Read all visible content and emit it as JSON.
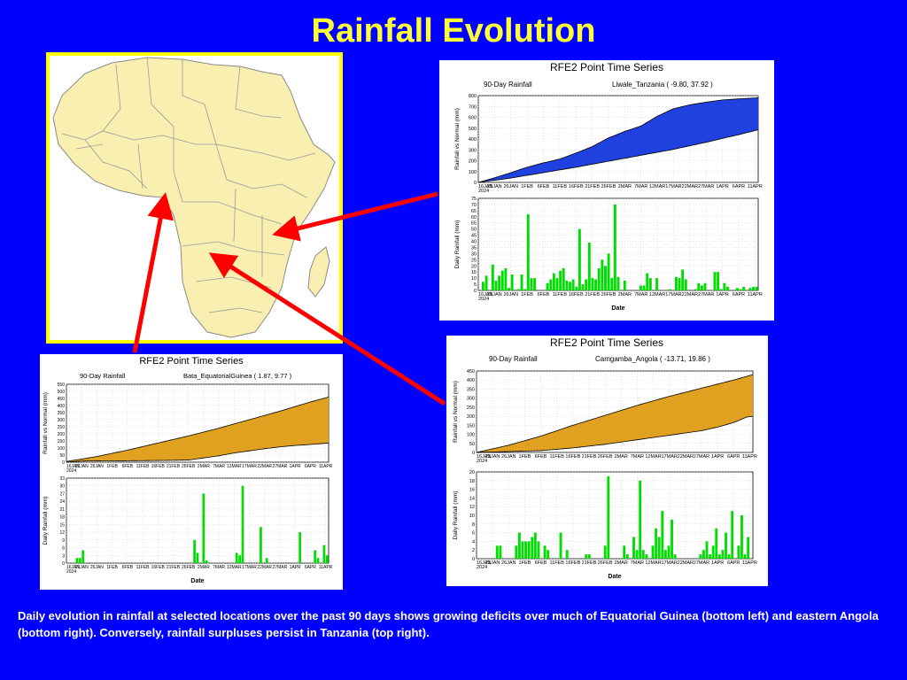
{
  "title": "Rainfall Evolution",
  "caption": "Daily evolution in rainfall at selected locations over the past 90 days shows growing deficits over much of Equatorial Guinea (bottom left) and eastern Angola (bottom right). Conversely, rainfall surpluses persist in Tanzania (top right).",
  "colors": {
    "background": "#0000ff",
    "title": "#ffff33",
    "arrow": "#ff0000",
    "map_fill": "#f8efb0",
    "map_border": "#ffff00",
    "daily_bar": "#00dd00"
  },
  "x_ticks": [
    "16JAN 2024",
    "21JAN",
    "26JAN",
    "1FEB",
    "6FEB",
    "11FEB",
    "16FEB",
    "21FEB",
    "26FEB",
    "2MAR",
    "7MAR",
    "12MAR",
    "17MAR",
    "22MAR",
    "27MAR",
    "1APR",
    "6APR",
    "11APR"
  ],
  "chart_data": [
    {
      "type": "area",
      "chart_title": "RFE2 Point Time Series",
      "title": "90-Day Rainfall",
      "location": "Liwale_Tanzania ( -9.80, 37.92 )",
      "ylabel": "Rainfall vs Normal (mm)",
      "ylim": [
        0,
        800
      ],
      "yticks": [
        0,
        100,
        200,
        300,
        400,
        500,
        600,
        700,
        800
      ],
      "area_color": "#2040e0",
      "series": [
        {
          "name": "Rainfall",
          "points": [
            [
              0,
              0
            ],
            [
              3,
              25
            ],
            [
              8,
              70
            ],
            [
              15,
              140
            ],
            [
              20,
              180
            ],
            [
              25,
              215
            ],
            [
              30,
              270
            ],
            [
              35,
              330
            ],
            [
              40,
              410
            ],
            [
              45,
              470
            ],
            [
              50,
              520
            ],
            [
              55,
              610
            ],
            [
              60,
              680
            ],
            [
              65,
              715
            ],
            [
              70,
              740
            ],
            [
              75,
              760
            ],
            [
              80,
              770
            ],
            [
              86,
              780
            ]
          ]
        },
        {
          "name": "Normal",
          "points": [
            [
              0,
              0
            ],
            [
              10,
              40
            ],
            [
              20,
              90
            ],
            [
              30,
              140
            ],
            [
              40,
              195
            ],
            [
              50,
              250
            ],
            [
              60,
              305
            ],
            [
              70,
              370
            ],
            [
              80,
              440
            ],
            [
              86,
              485
            ]
          ]
        }
      ],
      "daily": {
        "ylabel": "Daily Rainfall (mm)",
        "xlabel": "Date",
        "ylim": [
          0,
          75
        ],
        "yticks": [
          0,
          5,
          10,
          15,
          20,
          25,
          30,
          35,
          40,
          45,
          50,
          55,
          60,
          65,
          70,
          75
        ],
        "values": [
          0,
          7,
          12,
          0,
          21,
          8,
          12,
          16,
          18,
          2,
          13,
          0,
          1,
          13,
          1,
          62,
          10,
          10,
          0,
          0,
          0,
          6,
          9,
          14,
          10,
          16,
          18,
          8,
          7,
          9,
          3,
          50,
          5,
          9,
          39,
          10,
          9,
          18,
          25,
          20,
          30,
          10,
          70,
          11,
          0,
          8,
          0,
          0,
          0,
          0,
          4,
          4,
          14,
          10,
          0,
          10,
          0,
          0,
          0,
          1,
          0,
          11,
          10,
          17,
          9,
          0,
          0,
          1,
          6,
          4,
          6,
          0,
          0,
          15,
          15,
          1,
          6,
          3,
          0,
          0,
          2,
          1,
          3,
          0,
          2,
          3,
          3
        ]
      }
    },
    {
      "type": "area",
      "chart_title": "RFE2 Point Time Series",
      "title": "90-Day Rainfall",
      "location": "Bata_EquatorialGuinea ( 1.87, 9.77 )",
      "ylabel": "Rainfall vs Normal (mm)",
      "ylim": [
        0,
        550
      ],
      "yticks": [
        0,
        50,
        100,
        150,
        200,
        250,
        300,
        350,
        400,
        450,
        500,
        550
      ],
      "area_color": "#e0a020",
      "series": [
        {
          "name": "Normal",
          "points": [
            [
              0,
              5
            ],
            [
              10,
              40
            ],
            [
              20,
              85
            ],
            [
              30,
              135
            ],
            [
              40,
              185
            ],
            [
              50,
              240
            ],
            [
              60,
              300
            ],
            [
              70,
              360
            ],
            [
              80,
              425
            ],
            [
              86,
              460
            ]
          ]
        },
        {
          "name": "Rainfall",
          "points": [
            [
              0,
              0
            ],
            [
              5,
              8
            ],
            [
              10,
              9
            ],
            [
              20,
              10
            ],
            [
              30,
              12
            ],
            [
              40,
              15
            ],
            [
              45,
              30
            ],
            [
              50,
              45
            ],
            [
              55,
              65
            ],
            [
              60,
              80
            ],
            [
              65,
              95
            ],
            [
              70,
              108
            ],
            [
              75,
              118
            ],
            [
              80,
              125
            ],
            [
              86,
              135
            ]
          ]
        }
      ],
      "daily": {
        "ylabel": "Daily Rainfall (mm)",
        "xlabel": "Date",
        "ylim": [
          0,
          33
        ],
        "yticks": [
          0,
          3,
          6,
          9,
          12,
          15,
          18,
          21,
          24,
          27,
          30,
          33
        ],
        "values": [
          0,
          0,
          0,
          2,
          2,
          5,
          0,
          0,
          0,
          0,
          0,
          0,
          0,
          0,
          0,
          0,
          0,
          0,
          0,
          0,
          0,
          0,
          0,
          0,
          0,
          0,
          0,
          0,
          0,
          0,
          0,
          0,
          0,
          0,
          0,
          0,
          0,
          0,
          0,
          0,
          0,
          0,
          9,
          4,
          0,
          27,
          1,
          0,
          0,
          0,
          0,
          0,
          0,
          0,
          0,
          0,
          4,
          3,
          30,
          0,
          0,
          0,
          0,
          0,
          14,
          0,
          2,
          0,
          0,
          0,
          0,
          0,
          0,
          0,
          0,
          0,
          0,
          12,
          0,
          0,
          0,
          0,
          5,
          2,
          0,
          7,
          3
        ]
      }
    },
    {
      "type": "area",
      "chart_title": "RFE2 Point Time Series",
      "title": "90-Day Rainfall",
      "location": "Camgamba_Angola ( -13.71, 19.86 )",
      "ylabel": "Rainfall vs Normal (mm)",
      "ylim": [
        0,
        450
      ],
      "yticks": [
        0,
        50,
        100,
        150,
        200,
        250,
        300,
        350,
        400,
        450
      ],
      "area_color": "#e0a020",
      "series": [
        {
          "name": "Normal",
          "points": [
            [
              0,
              0
            ],
            [
              10,
              40
            ],
            [
              20,
              90
            ],
            [
              30,
              150
            ],
            [
              40,
              205
            ],
            [
              50,
              260
            ],
            [
              60,
              310
            ],
            [
              70,
              355
            ],
            [
              80,
              400
            ],
            [
              86,
              430
            ]
          ]
        },
        {
          "name": "Rainfall",
          "points": [
            [
              0,
              0
            ],
            [
              10,
              5
            ],
            [
              20,
              10
            ],
            [
              30,
              25
            ],
            [
              40,
              45
            ],
            [
              50,
              70
            ],
            [
              60,
              95
            ],
            [
              70,
              120
            ],
            [
              75,
              140
            ],
            [
              80,
              165
            ],
            [
              84,
              195
            ],
            [
              86,
              200
            ]
          ]
        }
      ],
      "daily": {
        "ylabel": "Daily Rainfall (mm)",
        "xlabel": "Date",
        "ylim": [
          0,
          20
        ],
        "yticks": [
          0,
          2,
          4,
          6,
          8,
          10,
          12,
          14,
          16,
          18,
          20
        ],
        "values": [
          0,
          0,
          0,
          0,
          0,
          0,
          3,
          3,
          0,
          0,
          0,
          0,
          3,
          6,
          4,
          4,
          4,
          5,
          6,
          4,
          0,
          3,
          2,
          0,
          0,
          0,
          6,
          0,
          2,
          0,
          0,
          0,
          0,
          0,
          1,
          1,
          0,
          0,
          0,
          0,
          3,
          19,
          0,
          0,
          0,
          0,
          3,
          1,
          0,
          5,
          2,
          18,
          2,
          1,
          0,
          3,
          7,
          5,
          11,
          2,
          3,
          9,
          1,
          0,
          0,
          0,
          0,
          0,
          0,
          0,
          1,
          2,
          4,
          1,
          3,
          7,
          1,
          2,
          6,
          1,
          11,
          0,
          3,
          10,
          1,
          5,
          0
        ]
      }
    }
  ]
}
